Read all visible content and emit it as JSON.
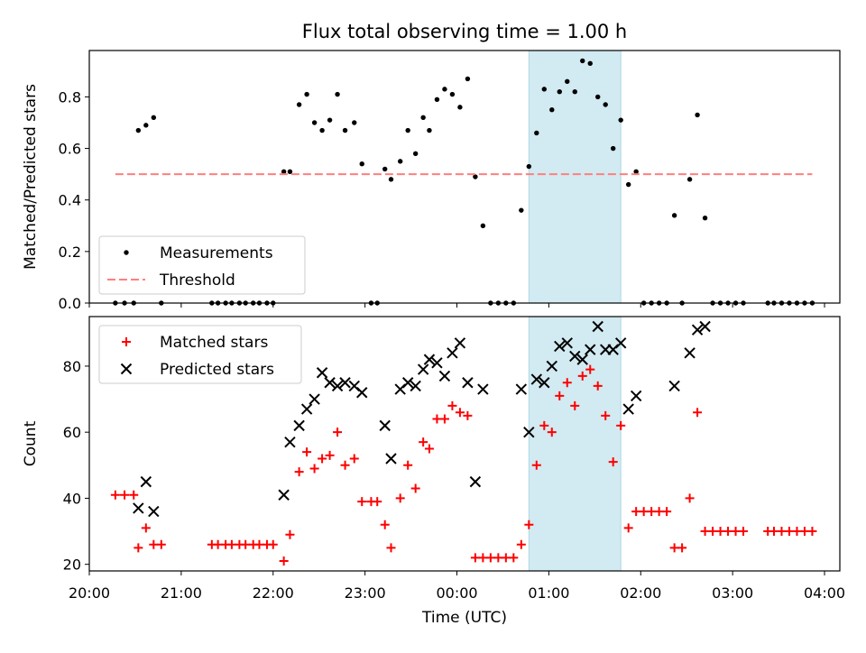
{
  "title": "Flux total observing time = 1.00 h",
  "xlabel": "Time (UTC)",
  "colors": {
    "measurement": "#000000",
    "threshold": "#ff7f7f",
    "matched": "#ff0000",
    "predicted": "#000000",
    "shade": "#add8e6"
  },
  "chart_data": [
    {
      "type": "scatter",
      "ylabel": "Matched/Predicted stars",
      "xlim": [
        "20:00",
        "04:10"
      ],
      "ylim": [
        0,
        0.98
      ],
      "yticks": [
        "0.0",
        "0.2",
        "0.4",
        "0.6",
        "0.8"
      ],
      "ytick_values": [
        0,
        0.2,
        0.4,
        0.6,
        0.8
      ],
      "grid": false,
      "legend_position": "lower-left",
      "shaded_interval": [
        "00:47",
        "01:47"
      ],
      "series": [
        {
          "name": "Measurements",
          "marker": "dot",
          "points": [
            [
              "20:17",
              0
            ],
            [
              "20:23",
              0
            ],
            [
              "20:29",
              0
            ],
            [
              "20:32",
              0.67
            ],
            [
              "20:37",
              0.69
            ],
            [
              "20:42",
              0.72
            ],
            [
              "20:47",
              0
            ],
            [
              "21:20",
              0
            ],
            [
              "21:24",
              0
            ],
            [
              "21:29",
              0
            ],
            [
              "21:33",
              0
            ],
            [
              "21:38",
              0
            ],
            [
              "21:42",
              0
            ],
            [
              "21:47",
              0
            ],
            [
              "21:51",
              0
            ],
            [
              "21:56",
              0
            ],
            [
              "22:00",
              0
            ],
            [
              "22:07",
              0.51
            ],
            [
              "22:11",
              0.51
            ],
            [
              "22:17",
              0.77
            ],
            [
              "22:22",
              0.81
            ],
            [
              "22:27",
              0.7
            ],
            [
              "22:32",
              0.67
            ],
            [
              "22:37",
              0.71
            ],
            [
              "22:42",
              0.81
            ],
            [
              "22:47",
              0.67
            ],
            [
              "22:53",
              0.7
            ],
            [
              "22:58",
              0.54
            ],
            [
              "23:04",
              0
            ],
            [
              "23:08",
              0
            ],
            [
              "23:13",
              0.52
            ],
            [
              "23:17",
              0.48
            ],
            [
              "23:23",
              0.55
            ],
            [
              "23:28",
              0.67
            ],
            [
              "23:33",
              0.58
            ],
            [
              "23:38",
              0.72
            ],
            [
              "23:42",
              0.67
            ],
            [
              "23:47",
              0.79
            ],
            [
              "23:52",
              0.83
            ],
            [
              "23:57",
              0.81
            ],
            [
              "00:02",
              0.76
            ],
            [
              "00:07",
              0.87
            ],
            [
              "00:12",
              0.49
            ],
            [
              "00:17",
              0.3
            ],
            [
              "00:22",
              0
            ],
            [
              "00:27",
              0
            ],
            [
              "00:32",
              0
            ],
            [
              "00:37",
              0
            ],
            [
              "00:42",
              0.36
            ],
            [
              "00:47",
              0.53
            ],
            [
              "00:52",
              0.66
            ],
            [
              "00:57",
              0.83
            ],
            [
              "01:02",
              0.75
            ],
            [
              "01:07",
              0.82
            ],
            [
              "01:12",
              0.86
            ],
            [
              "01:17",
              0.82
            ],
            [
              "01:22",
              0.94
            ],
            [
              "01:27",
              0.93
            ],
            [
              "01:32",
              0.8
            ],
            [
              "01:37",
              0.77
            ],
            [
              "01:42",
              0.6
            ],
            [
              "01:47",
              0.71
            ],
            [
              "01:52",
              0.46
            ],
            [
              "01:57",
              0.51
            ],
            [
              "02:02",
              0
            ],
            [
              "02:07",
              0
            ],
            [
              "02:12",
              0
            ],
            [
              "02:17",
              0
            ],
            [
              "02:22",
              0.34
            ],
            [
              "02:27",
              0
            ],
            [
              "02:32",
              0.48
            ],
            [
              "02:37",
              0.73
            ],
            [
              "02:42",
              0.33
            ],
            [
              "02:47",
              0
            ],
            [
              "02:52",
              0
            ],
            [
              "02:57",
              0
            ],
            [
              "03:02",
              0
            ],
            [
              "03:07",
              0
            ],
            [
              "03:23",
              0
            ],
            [
              "03:27",
              0
            ],
            [
              "03:32",
              0
            ],
            [
              "03:37",
              0
            ],
            [
              "03:42",
              0
            ],
            [
              "03:47",
              0
            ],
            [
              "03:52",
              0
            ]
          ]
        },
        {
          "name": "Threshold",
          "line_style": "dashed",
          "x": [
            "20:17",
            "03:52"
          ],
          "y": [
            0.5,
            0.5
          ]
        }
      ]
    },
    {
      "type": "scatter",
      "ylabel": "Count",
      "xlabel": "Time (UTC)",
      "xticks": [
        "20:00",
        "21:00",
        "22:00",
        "23:00",
        "00:00",
        "01:00",
        "02:00",
        "03:00",
        "04:00"
      ],
      "xlim": [
        "20:00",
        "04:10"
      ],
      "ylim": [
        18,
        95
      ],
      "yticks": [
        "20",
        "40",
        "60",
        "80"
      ],
      "ytick_values": [
        20,
        40,
        60,
        80
      ],
      "grid": false,
      "legend_position": "upper-left",
      "shaded_interval": [
        "00:47",
        "01:47"
      ],
      "series": [
        {
          "name": "Matched stars",
          "marker": "plus",
          "points": [
            [
              "20:17",
              41
            ],
            [
              "20:23",
              41
            ],
            [
              "20:29",
              41
            ],
            [
              "20:32",
              25
            ],
            [
              "20:37",
              31
            ],
            [
              "20:42",
              26
            ],
            [
              "20:47",
              26
            ],
            [
              "21:20",
              26
            ],
            [
              "21:24",
              26
            ],
            [
              "21:29",
              26
            ],
            [
              "21:33",
              26
            ],
            [
              "21:38",
              26
            ],
            [
              "21:42",
              26
            ],
            [
              "21:47",
              26
            ],
            [
              "21:51",
              26
            ],
            [
              "21:56",
              26
            ],
            [
              "22:00",
              26
            ],
            [
              "22:07",
              21
            ],
            [
              "22:11",
              29
            ],
            [
              "22:17",
              48
            ],
            [
              "22:22",
              54
            ],
            [
              "22:27",
              49
            ],
            [
              "22:32",
              52
            ],
            [
              "22:37",
              53
            ],
            [
              "22:42",
              60
            ],
            [
              "22:47",
              50
            ],
            [
              "22:53",
              52
            ],
            [
              "22:58",
              39
            ],
            [
              "23:04",
              39
            ],
            [
              "23:08",
              39
            ],
            [
              "23:13",
              32
            ],
            [
              "23:17",
              25
            ],
            [
              "23:23",
              40
            ],
            [
              "23:28",
              50
            ],
            [
              "23:33",
              43
            ],
            [
              "23:38",
              57
            ],
            [
              "23:42",
              55
            ],
            [
              "23:47",
              64
            ],
            [
              "23:52",
              64
            ],
            [
              "23:57",
              68
            ],
            [
              "00:02",
              66
            ],
            [
              "00:07",
              65
            ],
            [
              "00:12",
              22
            ],
            [
              "00:17",
              22
            ],
            [
              "00:22",
              22
            ],
            [
              "00:27",
              22
            ],
            [
              "00:32",
              22
            ],
            [
              "00:37",
              22
            ],
            [
              "00:42",
              26
            ],
            [
              "00:47",
              32
            ],
            [
              "00:52",
              50
            ],
            [
              "00:57",
              62
            ],
            [
              "01:02",
              60
            ],
            [
              "01:07",
              71
            ],
            [
              "01:12",
              75
            ],
            [
              "01:17",
              68
            ],
            [
              "01:22",
              77
            ],
            [
              "01:27",
              79
            ],
            [
              "01:32",
              74
            ],
            [
              "01:37",
              65
            ],
            [
              "01:42",
              51
            ],
            [
              "01:47",
              62
            ],
            [
              "01:52",
              31
            ],
            [
              "01:57",
              36
            ],
            [
              "02:02",
              36
            ],
            [
              "02:07",
              36
            ],
            [
              "02:12",
              36
            ],
            [
              "02:17",
              36
            ],
            [
              "02:22",
              25
            ],
            [
              "02:27",
              25
            ],
            [
              "02:32",
              40
            ],
            [
              "02:37",
              66
            ],
            [
              "02:42",
              30
            ],
            [
              "02:47",
              30
            ],
            [
              "02:52",
              30
            ],
            [
              "02:57",
              30
            ],
            [
              "03:02",
              30
            ],
            [
              "03:07",
              30
            ],
            [
              "03:23",
              30
            ],
            [
              "03:27",
              30
            ],
            [
              "03:32",
              30
            ],
            [
              "03:37",
              30
            ],
            [
              "03:42",
              30
            ],
            [
              "03:47",
              30
            ],
            [
              "03:52",
              30
            ]
          ]
        },
        {
          "name": "Predicted stars",
          "marker": "x",
          "points": [
            [
              "20:32",
              37
            ],
            [
              "20:37",
              45
            ],
            [
              "20:42",
              36
            ],
            [
              "22:07",
              41
            ],
            [
              "22:11",
              57
            ],
            [
              "22:17",
              62
            ],
            [
              "22:22",
              67
            ],
            [
              "22:27",
              70
            ],
            [
              "22:32",
              78
            ],
            [
              "22:37",
              75
            ],
            [
              "22:42",
              74
            ],
            [
              "22:47",
              75
            ],
            [
              "22:53",
              74
            ],
            [
              "22:58",
              72
            ],
            [
              "23:13",
              62
            ],
            [
              "23:17",
              52
            ],
            [
              "23:23",
              73
            ],
            [
              "23:28",
              75
            ],
            [
              "23:33",
              74
            ],
            [
              "23:38",
              79
            ],
            [
              "23:42",
              82
            ],
            [
              "23:47",
              81
            ],
            [
              "23:52",
              77
            ],
            [
              "23:57",
              84
            ],
            [
              "00:02",
              87
            ],
            [
              "00:07",
              75
            ],
            [
              "00:12",
              45
            ],
            [
              "00:17",
              73
            ],
            [
              "00:42",
              73
            ],
            [
              "00:47",
              60
            ],
            [
              "00:52",
              76
            ],
            [
              "00:57",
              75
            ],
            [
              "01:02",
              80
            ],
            [
              "01:07",
              86
            ],
            [
              "01:12",
              87
            ],
            [
              "01:17",
              83
            ],
            [
              "01:22",
              82
            ],
            [
              "01:27",
              85
            ],
            [
              "01:32",
              92
            ],
            [
              "01:37",
              85
            ],
            [
              "01:42",
              85
            ],
            [
              "01:47",
              87
            ],
            [
              "01:52",
              67
            ],
            [
              "01:57",
              71
            ],
            [
              "02:22",
              74
            ],
            [
              "02:32",
              84
            ],
            [
              "02:37",
              91
            ],
            [
              "02:42",
              92
            ]
          ]
        }
      ]
    }
  ]
}
